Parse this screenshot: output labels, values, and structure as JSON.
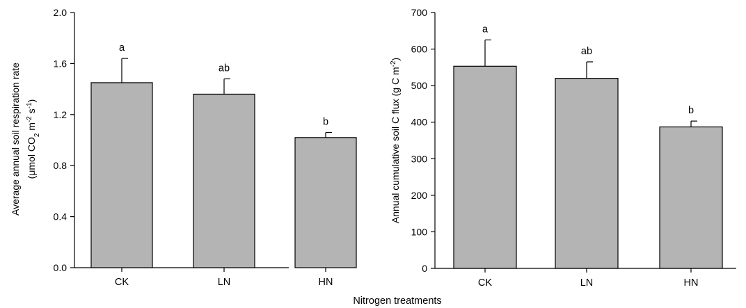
{
  "xlabel": "Nitrogen treatments",
  "chart_data": [
    {
      "type": "bar",
      "categories": [
        "CK",
        "LN",
        "HN"
      ],
      "values": [
        1.45,
        1.36,
        1.02
      ],
      "errors": [
        0.19,
        0.12,
        0.04
      ],
      "significance": [
        "a",
        "ab",
        "b"
      ],
      "ylabel_line1": "Average annual soil respiration rate",
      "ylabel_line2": [
        "(μmol CO",
        "2",
        " m",
        "-2",
        " s",
        "-1",
        ")"
      ],
      "ylim": [
        0,
        2.0
      ],
      "yticks": [
        "0.0",
        "0.4",
        "0.8",
        "1.2",
        "1.6",
        "2.0"
      ],
      "bar_color": "#b4b4b4",
      "grid": false
    },
    {
      "type": "bar",
      "categories": [
        "CK",
        "LN",
        "HN"
      ],
      "values": [
        553,
        520,
        387
      ],
      "errors": [
        72,
        45,
        16
      ],
      "significance": [
        "a",
        "ab",
        "b"
      ],
      "ylabel_line1": [
        "Annual cumulative soil C flux  (g C m",
        "-2",
        ")"
      ],
      "ylim": [
        0,
        700
      ],
      "yticks": [
        "0",
        "100",
        "200",
        "300",
        "400",
        "500",
        "600",
        "700"
      ],
      "bar_color": "#b4b4b4",
      "grid": false
    }
  ]
}
